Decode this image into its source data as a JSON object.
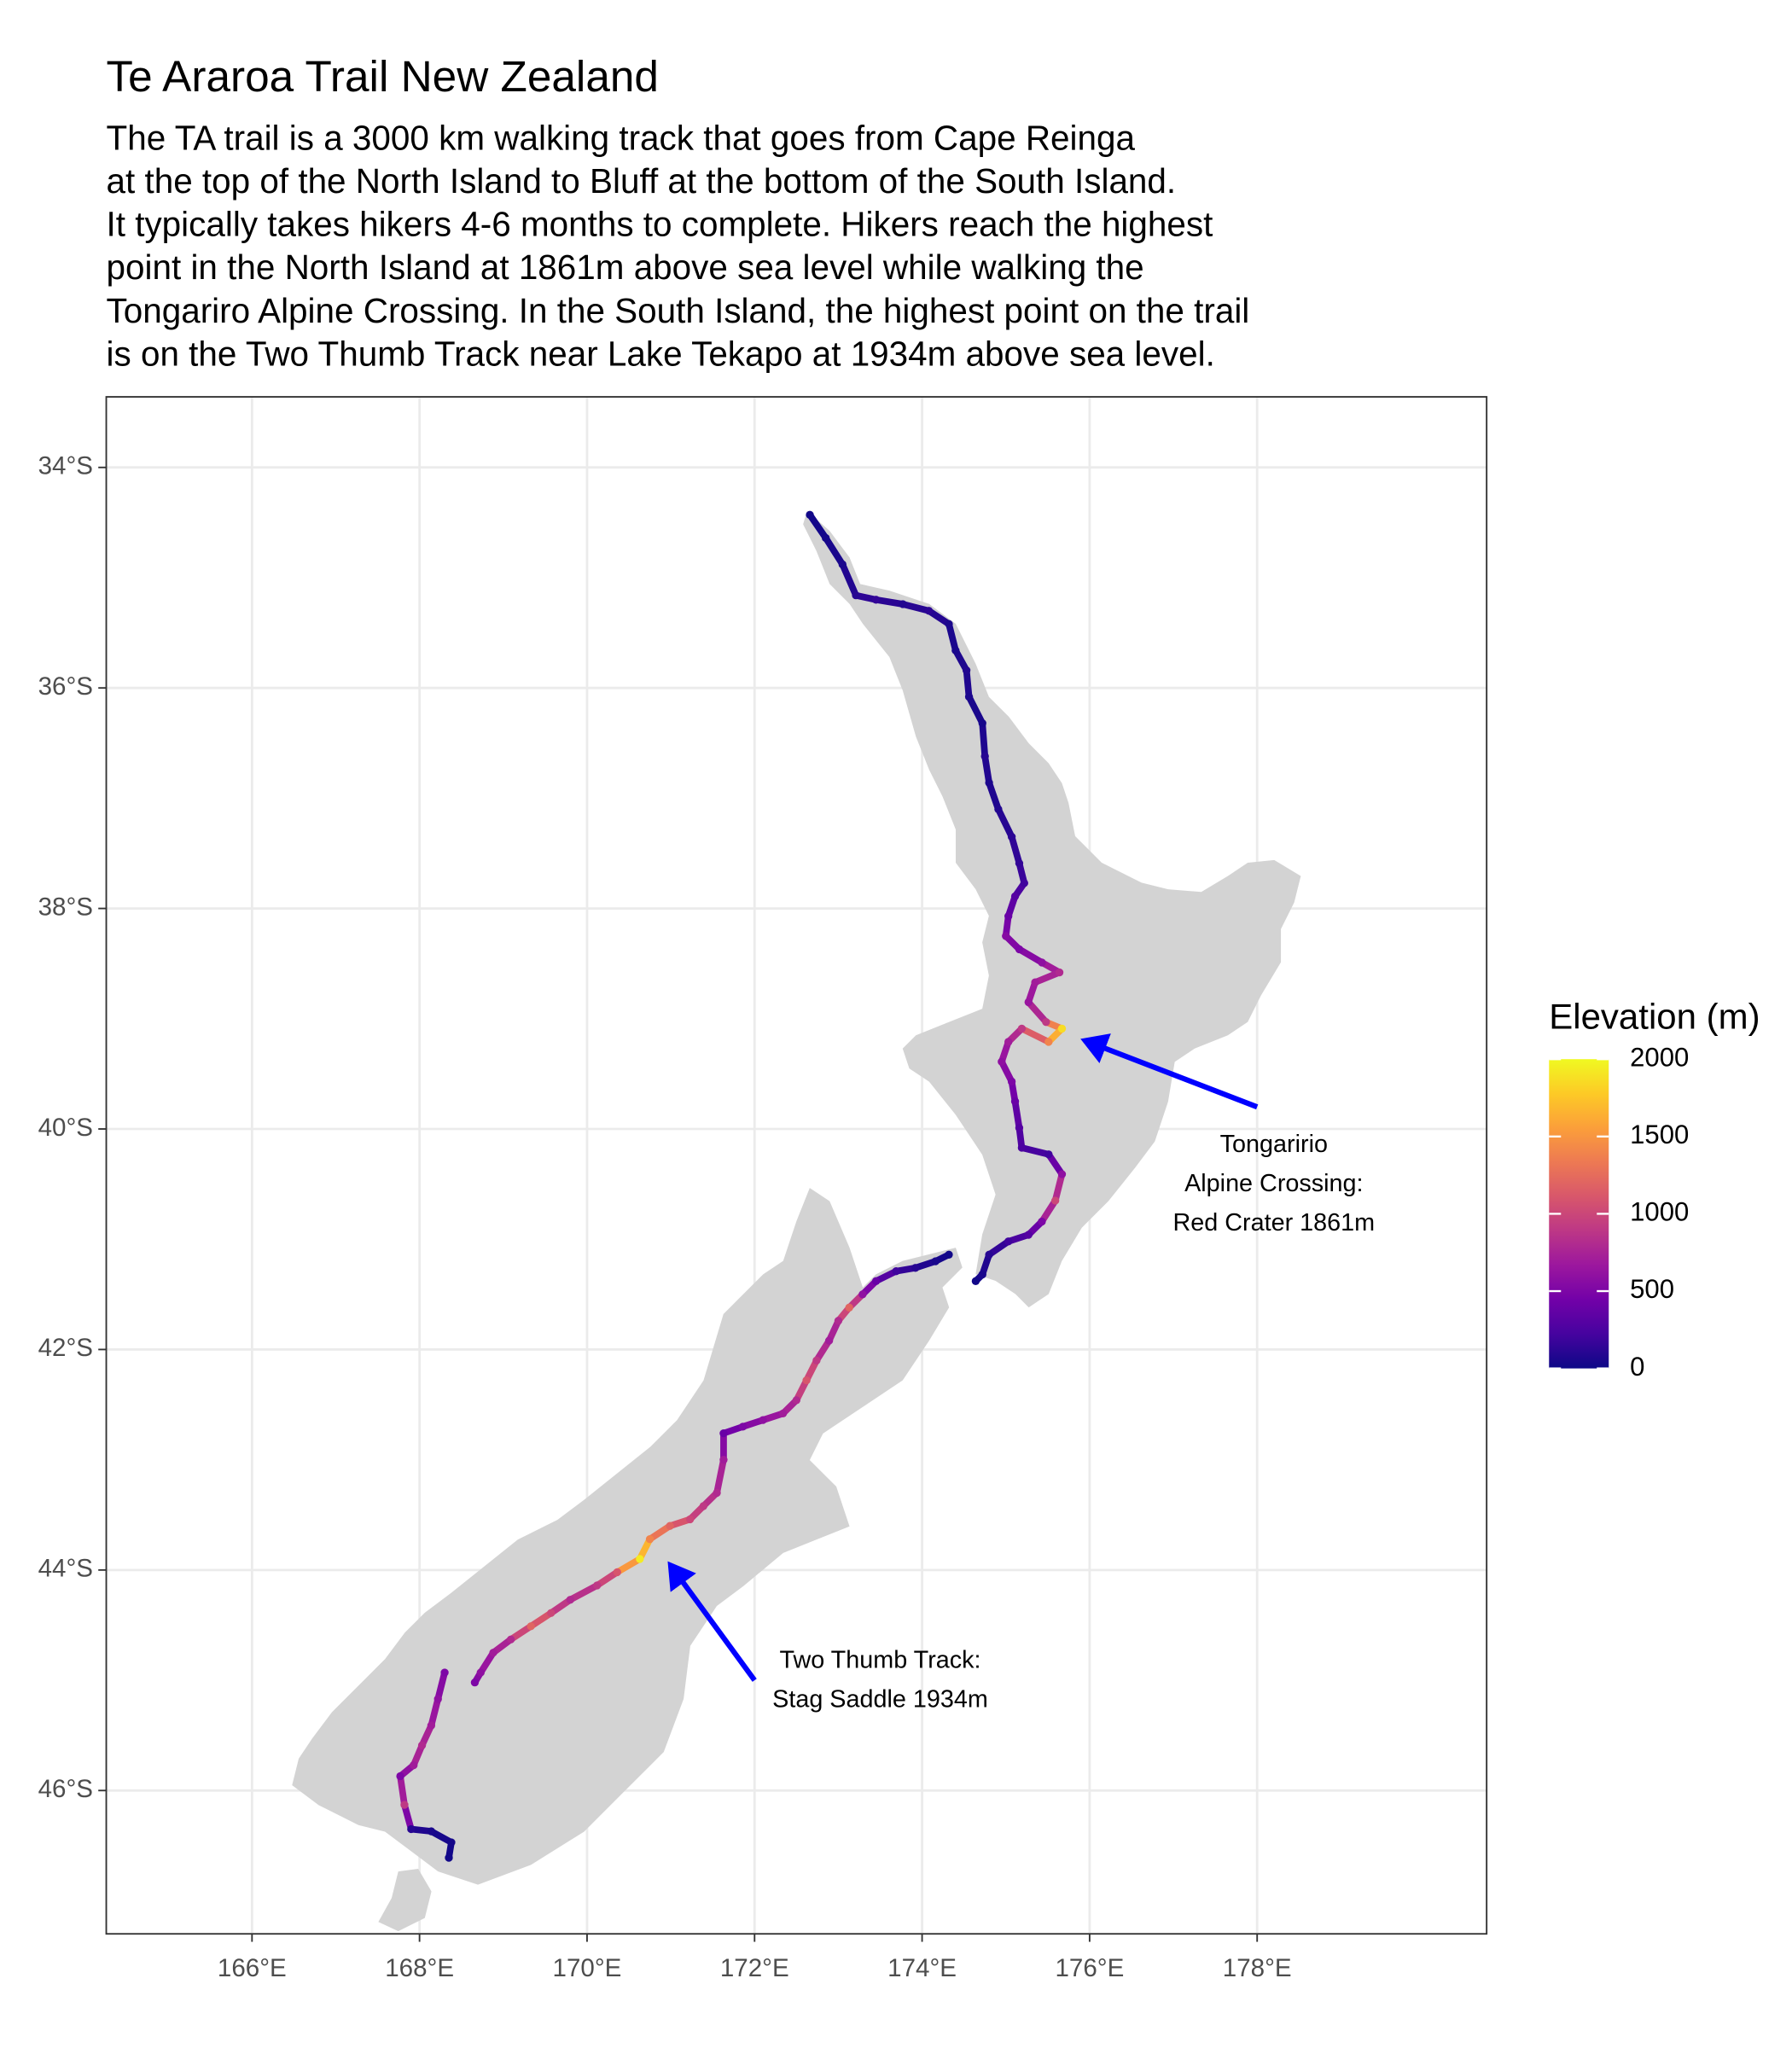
{
  "chart_data": {
    "type": "map",
    "title": "Te Araroa Trail New Zealand",
    "subtitle_lines": [
      "The TA trail is a 3000 km walking track that goes from Cape Reinga",
      "at the top of the North Island to Bluff at the bottom of the South Island.",
      "It typically takes hikers 4-6 months to complete. Hikers reach the highest",
      "point in the North Island at 1861m above sea level while walking the",
      "Tongariro Alpine Crossing. In the South Island, the highest point on the trail",
      "is on the Two Thumb Track near Lake Tekapo at 1934m above sea level."
    ],
    "xlim": [
      164.26,
      180.74
    ],
    "ylim": [
      -47.3,
      -33.36
    ],
    "xticks": [
      {
        "value": 166,
        "label": "166°E"
      },
      {
        "value": 168,
        "label": "168°E"
      },
      {
        "value": 170,
        "label": "170°E"
      },
      {
        "value": 172,
        "label": "172°E"
      },
      {
        "value": 174,
        "label": "174°E"
      },
      {
        "value": 176,
        "label": "176°E"
      },
      {
        "value": 178,
        "label": "178°E"
      }
    ],
    "yticks": [
      {
        "value": -34,
        "label": "34°S"
      },
      {
        "value": -36,
        "label": "36°S"
      },
      {
        "value": -38,
        "label": "38°S"
      },
      {
        "value": -40,
        "label": "40°S"
      },
      {
        "value": -42,
        "label": "42°S"
      },
      {
        "value": -44,
        "label": "44°S"
      },
      {
        "value": -46,
        "label": "46°S"
      }
    ],
    "grid": true,
    "trail": {
      "lon": [
        172.66,
        172.85,
        173.05,
        173.21,
        173.45,
        173.77,
        174.08,
        174.32,
        174.4,
        174.53,
        174.56,
        174.72,
        174.75,
        174.8,
        174.91,
        175.07,
        175.16,
        175.22,
        175.11,
        175.03,
        175.0,
        175.16,
        175.43,
        175.64,
        175.35,
        175.27,
        175.48,
        175.67,
        175.51,
        175.19,
        175.03,
        174.95,
        175.07,
        175.11,
        175.16,
        175.19,
        175.51,
        175.67,
        175.59,
        175.43,
        175.27,
        175.03,
        174.8,
        174.72,
        174.64,
        null,
        174.32,
        174.16,
        173.92,
        173.69,
        173.45,
        173.29,
        173.13,
        173.0,
        172.89,
        172.74,
        172.62,
        172.5,
        172.34,
        172.1,
        171.86,
        171.63,
        171.63,
        171.55,
        171.39,
        171.23,
        170.99,
        170.75,
        170.63,
        170.36,
        170.12,
        169.8,
        169.57,
        169.33,
        169.09,
        168.88,
        168.73,
        168.66,
        null,
        168.3,
        168.22,
        168.14,
        168.03,
        167.93,
        167.77,
        167.82,
        167.9,
        168.14,
        168.38,
        168.35
      ],
      "lat": [
        -34.43,
        -34.64,
        -34.88,
        -35.16,
        -35.2,
        -35.24,
        -35.3,
        -35.42,
        -35.66,
        -35.84,
        -36.08,
        -36.32,
        -36.62,
        -36.86,
        -37.1,
        -37.35,
        -37.59,
        -37.77,
        -37.89,
        -38.07,
        -38.25,
        -38.37,
        -38.49,
        -38.58,
        -38.67,
        -38.85,
        -39.03,
        -39.09,
        -39.21,
        -39.09,
        -39.21,
        -39.39,
        -39.57,
        -39.75,
        -39.99,
        -40.17,
        -40.23,
        -40.41,
        -40.65,
        -40.84,
        -40.96,
        -41.02,
        -41.14,
        -41.32,
        -41.38,
        null,
        -41.14,
        -41.2,
        -41.26,
        -41.29,
        -41.38,
        -41.5,
        -41.62,
        -41.74,
        -41.92,
        -42.1,
        -42.28,
        -42.46,
        -42.58,
        -42.64,
        -42.7,
        -42.76,
        -43.0,
        -43.3,
        -43.42,
        -43.54,
        -43.6,
        -43.72,
        -43.9,
        -44.02,
        -44.14,
        -44.27,
        -44.39,
        -44.51,
        -44.63,
        -44.75,
        -44.93,
        -45.02,
        null,
        -44.93,
        -45.17,
        -45.41,
        -45.59,
        -45.77,
        -45.87,
        -46.13,
        -46.35,
        -46.37,
        -46.47,
        -46.61
      ],
      "elevation": [
        20,
        30,
        60,
        100,
        150,
        80,
        120,
        60,
        50,
        80,
        60,
        40,
        100,
        60,
        80,
        120,
        150,
        200,
        300,
        400,
        550,
        500,
        600,
        800,
        700,
        650,
        900,
        1861,
        1400,
        900,
        700,
        600,
        500,
        400,
        300,
        250,
        200,
        600,
        1000,
        500,
        300,
        200,
        100,
        50,
        20,
        null,
        20,
        50,
        100,
        200,
        400,
        600,
        1200,
        800,
        700,
        900,
        1100,
        800,
        700,
        600,
        500,
        400,
        700,
        800,
        900,
        1000,
        1200,
        1400,
        1934,
        1100,
        900,
        800,
        1000,
        1200,
        800,
        700,
        600,
        500,
        null,
        500,
        600,
        700,
        800,
        700,
        500,
        900,
        100,
        50,
        30,
        20
      ]
    },
    "legend": {
      "title": "Elevation (m)",
      "limits": [
        0,
        2000
      ],
      "ticks": [
        0,
        500,
        1000,
        1500,
        2000
      ],
      "colors": [
        "#0d0887",
        "#46039f",
        "#7201a8",
        "#9c179e",
        "#bd3786",
        "#d8576b",
        "#ed7953",
        "#fb9f3a",
        "#fdca26",
        "#f0f921"
      ]
    },
    "annotations": [
      {
        "text_lines": [
          "Tongaririo",
          "Alpine Crossing:",
          "Red Crater 1861m"
        ],
        "x": 178.2,
        "y": -40.15,
        "arrow": {
          "x": 178.0,
          "y": -39.8,
          "xend": 175.95,
          "yend": -39.2
        },
        "color": "#0000ff"
      },
      {
        "text_lines": [
          "Two Thumb Track:",
          "Stag Saddle 1934m"
        ],
        "x": 173.5,
        "y": -44.83,
        "arrow": {
          "x": 172.0,
          "y": -45.0,
          "xend": 171.0,
          "yend": -43.96
        },
        "color": "#0000ff"
      }
    ]
  }
}
